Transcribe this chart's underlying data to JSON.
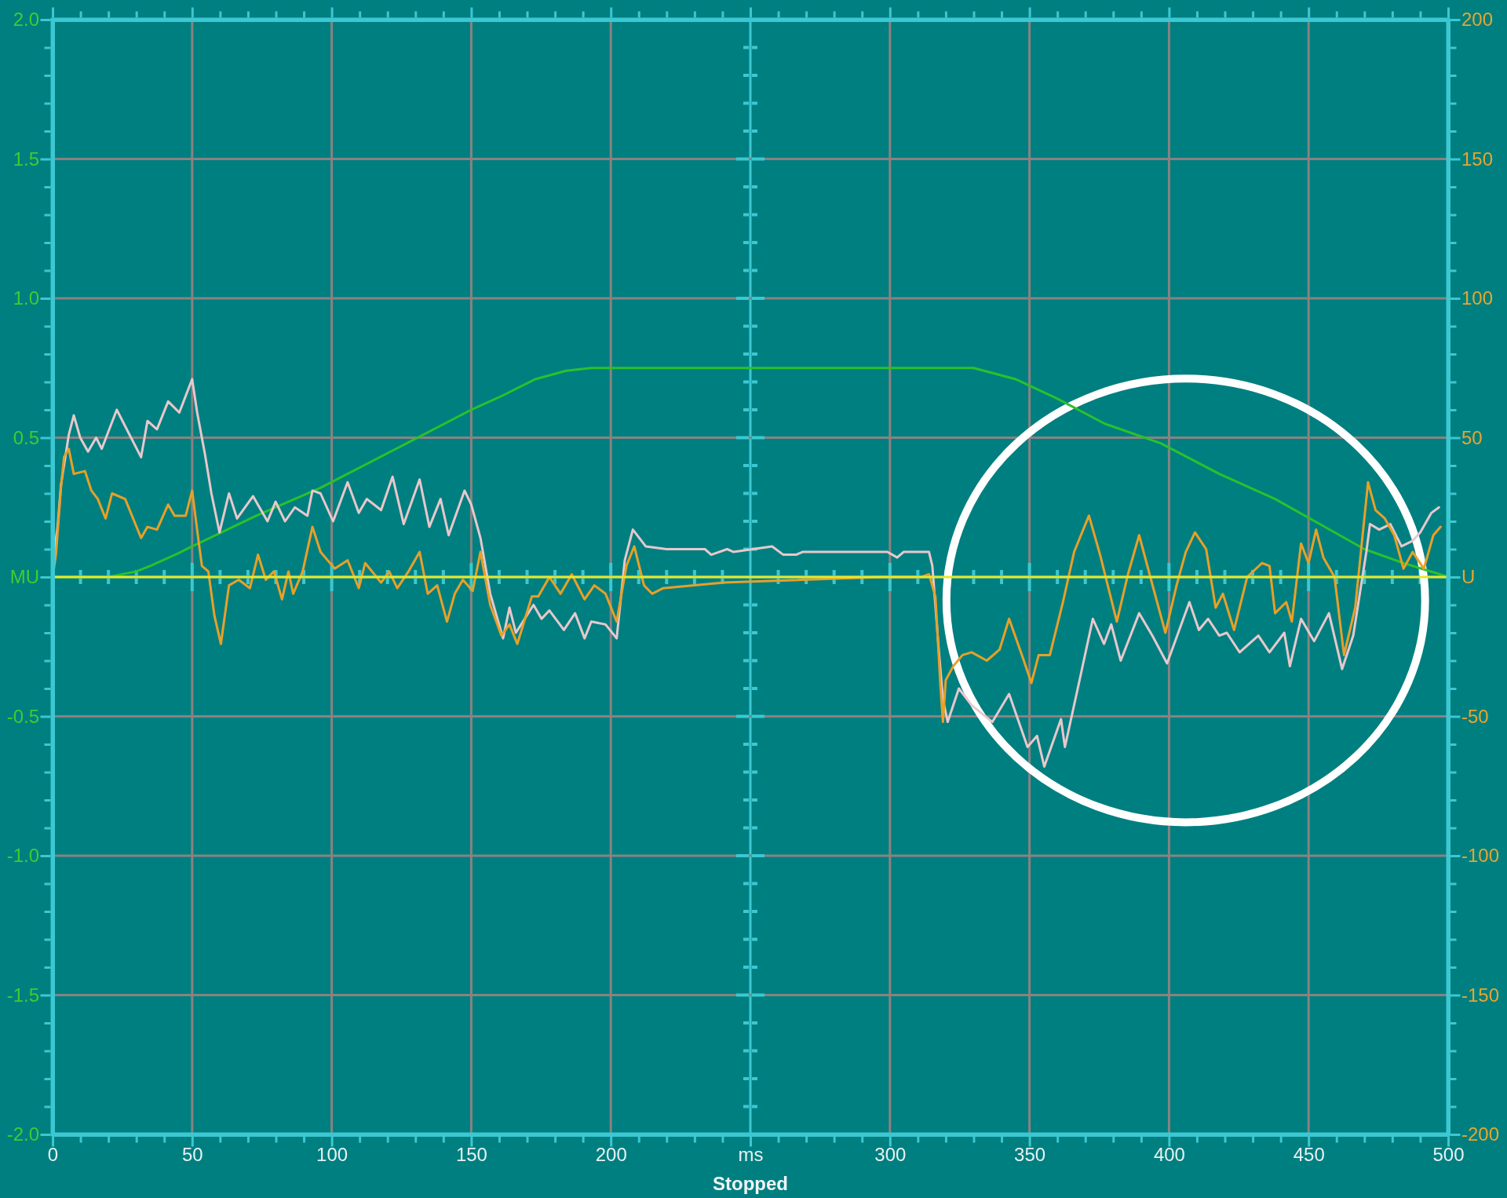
{
  "chart_data": {
    "type": "line",
    "xlabel": "Stopped",
    "xlim": [
      0,
      500
    ],
    "ylim": [
      -2,
      2
    ],
    "y2lim": [
      -200,
      200
    ],
    "grid": true,
    "xticks": [
      0,
      {
        "value": 10,
        "label": null
      },
      {
        "value": 20,
        "label": null
      },
      {
        "value": 30,
        "label": null
      },
      {
        "value": 40,
        "label": null
      },
      50,
      {
        "value": 60,
        "label": null
      },
      {
        "value": 70,
        "label": null
      },
      {
        "value": 80,
        "label": null
      },
      {
        "value": 90,
        "label": null
      },
      100,
      {
        "value": 110,
        "label": null
      },
      {
        "value": 120,
        "label": null
      },
      {
        "value": 130,
        "label": null
      },
      {
        "value": 140,
        "label": null
      },
      150,
      {
        "value": 160,
        "label": null
      },
      {
        "value": 170,
        "label": null
      },
      {
        "value": 180,
        "label": null
      },
      {
        "value": 190,
        "label": null
      },
      200,
      {
        "value": 210,
        "label": null
      },
      {
        "value": 220,
        "label": null
      },
      {
        "value": 230,
        "label": null
      },
      {
        "value": 240,
        "label": null
      },
      {
        "value": 250,
        "label": "ms"
      },
      {
        "value": 260,
        "label": null
      },
      {
        "value": 270,
        "label": null
      },
      {
        "value": 280,
        "label": null
      },
      {
        "value": 290,
        "label": null
      },
      300,
      {
        "value": 310,
        "label": null
      },
      {
        "value": 320,
        "label": null
      },
      {
        "value": 330,
        "label": null
      },
      {
        "value": 340,
        "label": null
      },
      350,
      {
        "value": 360,
        "label": null
      },
      {
        "value": 370,
        "label": null
      },
      {
        "value": 380,
        "label": null
      },
      {
        "value": 390,
        "label": null
      },
      400,
      {
        "value": 410,
        "label": null
      },
      {
        "value": 420,
        "label": null
      },
      {
        "value": 430,
        "label": null
      },
      {
        "value": 440,
        "label": null
      },
      450,
      {
        "value": 460,
        "label": null
      },
      {
        "value": 470,
        "label": null
      },
      {
        "value": 480,
        "label": null
      },
      {
        "value": 490,
        "label": null
      },
      500
    ],
    "yticks": [
      {
        "value": -2,
        "label": "-2.0"
      },
      {
        "value": -1.9,
        "label": null
      },
      {
        "value": -1.8,
        "label": null
      },
      {
        "value": -1.7,
        "label": null
      },
      {
        "value": -1.6,
        "label": null
      },
      -1.5,
      {
        "value": -1.4,
        "label": null
      },
      {
        "value": -1.3,
        "label": null
      },
      {
        "value": -1.2,
        "label": null
      },
      {
        "value": -1.1,
        "label": null
      },
      {
        "value": -1,
        "label": "-1.0"
      },
      {
        "value": -0.9,
        "label": null
      },
      {
        "value": -0.8,
        "label": null
      },
      {
        "value": -0.7,
        "label": null
      },
      {
        "value": -0.6,
        "label": null
      },
      -0.5,
      {
        "value": -0.4,
        "label": null
      },
      {
        "value": -0.3,
        "label": null
      },
      {
        "value": -0.2,
        "label": null
      },
      {
        "value": -0.1,
        "label": null
      },
      {
        "value": 0,
        "label": "MU"
      },
      {
        "value": 0.1,
        "label": null
      },
      {
        "value": 0.2,
        "label": null
      },
      {
        "value": 0.3,
        "label": null
      },
      {
        "value": 0.4,
        "label": null
      },
      0.5,
      {
        "value": 0.6,
        "label": null
      },
      {
        "value": 0.7,
        "label": null
      },
      {
        "value": 0.8,
        "label": null
      },
      {
        "value": 0.9,
        "label": null
      },
      {
        "value": 1,
        "label": "1.0"
      },
      {
        "value": 1.1,
        "label": null
      },
      {
        "value": 1.2,
        "label": null
      },
      {
        "value": 1.3,
        "label": null
      },
      {
        "value": 1.4,
        "label": null
      },
      1.5,
      {
        "value": 1.6,
        "label": null
      },
      {
        "value": 1.7,
        "label": null
      },
      {
        "value": 1.8,
        "label": null
      },
      {
        "value": 1.9,
        "label": null
      },
      {
        "value": 2,
        "label": "2.0"
      }
    ],
    "y2ticks": [
      -200,
      {
        "value": -190,
        "label": null
      },
      {
        "value": -180,
        "label": null
      },
      {
        "value": -170,
        "label": null
      },
      {
        "value": -160,
        "label": null
      },
      -150,
      {
        "value": -140,
        "label": null
      },
      {
        "value": -130,
        "label": null
      },
      {
        "value": -120,
        "label": null
      },
      {
        "value": -110,
        "label": null
      },
      -100,
      {
        "value": -90,
        "label": null
      },
      {
        "value": -80,
        "label": null
      },
      {
        "value": -70,
        "label": null
      },
      {
        "value": -60,
        "label": null
      },
      -50,
      {
        "value": -40,
        "label": null
      },
      {
        "value": -30,
        "label": null
      },
      {
        "value": -20,
        "label": null
      },
      {
        "value": -10,
        "label": null
      },
      {
        "value": 0,
        "label": "U"
      },
      {
        "value": 10,
        "label": null
      },
      {
        "value": 20,
        "label": null
      },
      {
        "value": 30,
        "label": null
      },
      {
        "value": 40,
        "label": null
      },
      50,
      {
        "value": 60,
        "label": null
      },
      {
        "value": 70,
        "label": null
      },
      {
        "value": 80,
        "label": null
      },
      {
        "value": 90,
        "label": null
      },
      100,
      {
        "value": 110,
        "label": null
      },
      {
        "value": 120,
        "label": null
      },
      {
        "value": 130,
        "label": null
      },
      {
        "value": 140,
        "label": null
      },
      150,
      {
        "value": 160,
        "label": null
      },
      {
        "value": 170,
        "label": null
      },
      {
        "value": 180,
        "label": null
      },
      {
        "value": 190,
        "label": null
      },
      200
    ],
    "series": [
      {
        "color": "#2cc02c",
        "x": [
          0,
          20,
          30,
          35,
          45,
          50,
          73,
          96,
          125,
          150,
          161,
          173,
          184,
          193,
          330,
          345,
          360,
          377,
          397,
          418,
          438,
          454,
          470,
          484,
          497,
          500
        ],
        "values": [
          0,
          0,
          0.02,
          0.04,
          0.085,
          0.11,
          0.22,
          0.32,
          0.47,
          0.6,
          0.65,
          0.71,
          0.74,
          0.75,
          0.75,
          0.71,
          0.64,
          0.55,
          0.48,
          0.37,
          0.28,
          0.19,
          0.1,
          0.05,
          0.01,
          0
        ]
      },
      {
        "color": "#e8c8cc",
        "axis": "y2",
        "x": [
          0,
          0.7,
          1.8,
          3,
          5.8,
          7.6,
          9.9,
          12.7,
          15.6,
          17.6,
          23,
          27.6,
          31.7,
          34,
          37.4,
          41.4,
          45.4,
          50,
          51.8,
          54.6,
          56.9,
          59.8,
          63.2,
          66.1,
          71.8,
          77,
          79.9,
          83.3,
          86.8,
          91.3,
          93.1,
          96,
          100.5,
          105.7,
          109.7,
          112.6,
          117.7,
          121.8,
          125.8,
          131.5,
          135,
          139,
          141.9,
          147.6,
          150,
          153.3,
          156.8,
          161.4,
          163.7,
          166,
          172.3,
          175.2,
          178,
          183.2,
          187.2,
          190.6,
          193,
          198.1,
          202.1,
          205,
          207.9,
          212.5,
          220,
          233.7,
          236,
          241.7,
          244,
          257.8,
          261.8,
          266.4,
          268.7,
          299.1,
          302.6,
          304.9,
          314,
          315.2,
          317.5,
          319,
          320.7,
          324.7,
          329.3,
          336.7,
          342.7,
          349.3,
          352.7,
          355.3,
          361.3,
          362.7,
          367.3,
          372.7,
          376.7,
          379.3,
          382.7,
          389.3,
          394,
          399.3,
          407.3,
          410.7,
          414,
          418,
          420.7,
          425.3,
          432,
          436,
          441.3,
          443.3,
          447.3,
          452,
          457.3,
          462,
          466,
          470.7,
          472,
          475.3,
          479.3,
          483.3,
          487.3,
          490,
          494,
          496.7
        ],
        "values": [
          0,
          10,
          18,
          33,
          51,
          58,
          50,
          45,
          50,
          46,
          60,
          51,
          43,
          56,
          53,
          63,
          59,
          71,
          59,
          44,
          30,
          16,
          30,
          21,
          29,
          20,
          27,
          20,
          25,
          22,
          31,
          30,
          20,
          34,
          23,
          28,
          24,
          36,
          19,
          35,
          18,
          28,
          15,
          31,
          26,
          14,
          -6,
          -22,
          -11,
          -20,
          -10,
          -15,
          -12,
          -19,
          -13,
          -22,
          -16,
          -17,
          -22,
          6,
          17,
          11,
          10,
          10,
          8,
          10,
          9,
          11,
          8,
          8,
          9,
          9,
          7,
          9,
          9,
          4,
          -26,
          -44,
          -52,
          -40,
          -46,
          -52,
          -42,
          -61,
          -57,
          -68,
          -51,
          -61,
          -40,
          -15,
          -24,
          -17,
          -30,
          -13,
          -21,
          -31,
          -9,
          -19,
          -15,
          -21,
          -20,
          -27,
          -21,
          -27,
          -20,
          -32,
          -15,
          -23,
          -13,
          -33,
          -21,
          9,
          19,
          17,
          19,
          11,
          13,
          16,
          23,
          25
        ]
      },
      {
        "color": "#e8a028",
        "axis": "y2",
        "x": [
          0,
          1.2,
          3,
          4.1,
          5.8,
          7.6,
          11.6,
          13.9,
          16.2,
          19,
          21.3,
          26,
          31.7,
          34,
          37.4,
          41.4,
          43.7,
          47.7,
          50,
          52.3,
          53.5,
          55.8,
          58,
          60.3,
          63.2,
          66.7,
          70.7,
          73.6,
          76.4,
          79.3,
          82.2,
          84.5,
          86.2,
          89.6,
          93.1,
          96,
          101.1,
          105.7,
          109.7,
          112,
          117.7,
          120.6,
          123.5,
          127.5,
          131.5,
          134.4,
          137.8,
          141.3,
          144.1,
          147,
          150.5,
          153.3,
          156.8,
          160.8,
          163.7,
          166.5,
          171.7,
          174,
          178,
          182,
          186,
          190.6,
          194.1,
          198.1,
          202.1,
          205.6,
          208.4,
          211.9,
          214.8,
          218.8,
          240.6,
          296.8,
          311.3,
          314,
          316.3,
          318.1,
          319,
          320,
          322.7,
          326,
          329.3,
          334.7,
          339.3,
          342.7,
          347.3,
          350.7,
          353.3,
          357.3,
          362,
          366,
          371.3,
          375.3,
          381.3,
          385.3,
          389.3,
          393.3,
          398.7,
          402.7,
          406,
          409.3,
          413.3,
          416.7,
          419.3,
          423.3,
          428,
          433.3,
          436,
          438,
          442,
          444,
          447.3,
          450,
          452.7,
          455.3,
          459.3,
          462.7,
          466.7,
          471.3,
          474,
          477.3,
          480.7,
          484,
          487.3,
          491.3,
          494.7,
          497.3
        ],
        "values": [
          0,
          8,
          32,
          43,
          46,
          37,
          38,
          31,
          28,
          21,
          30,
          28,
          14,
          18,
          17,
          26,
          22,
          22,
          31,
          13,
          4,
          2,
          -14,
          -24,
          -3,
          -1,
          -4,
          8,
          -1,
          2,
          -8,
          2,
          -6,
          2,
          18,
          9,
          3,
          6,
          -4,
          5,
          -2,
          2,
          -4,
          2,
          9,
          -6,
          -3,
          -16,
          -6,
          -1,
          -5,
          9,
          -10,
          -21,
          -17,
          -24,
          -7,
          -7,
          0,
          -6,
          1,
          -8,
          -3,
          -6,
          -16,
          4,
          11,
          -3,
          -6,
          -4,
          -2,
          0,
          0,
          1,
          -7,
          -39,
          -52,
          -37,
          -32,
          -28,
          -27,
          -30,
          -26,
          -15,
          -28,
          -38,
          -28,
          -28,
          -9,
          9,
          22,
          8,
          -16,
          1,
          15,
          0,
          -20,
          -3,
          9,
          16,
          10,
          -11,
          -6,
          -19,
          0,
          5,
          4,
          -13,
          -9,
          -16,
          12,
          5,
          17,
          7,
          0,
          -28,
          -11,
          34,
          24,
          21,
          15,
          3,
          9,
          3,
          15,
          18
        ]
      },
      {
        "color": "#e8e828",
        "x": [
          0,
          500
        ],
        "values": [
          0,
          0
        ]
      }
    ]
  }
}
